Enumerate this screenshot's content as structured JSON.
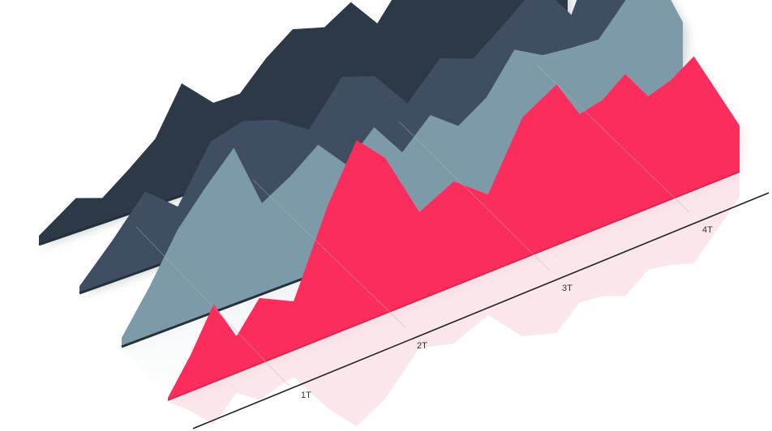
{
  "chart_data": {
    "type": "area",
    "title": "",
    "xlabel": "",
    "ylabel": "",
    "view": "3d-ribbons",
    "grid": false,
    "legend": "none",
    "categories": [
      "1T",
      "2T",
      "3T",
      "4T"
    ],
    "series": [
      {
        "name": "",
        "color": "#2e3947",
        "x": [
          0,
          0.07,
          0.12,
          0.17,
          0.22,
          0.27,
          0.33,
          0.38,
          0.43,
          0.48,
          0.54,
          0.59,
          0.64,
          0.69,
          0.74,
          0.79,
          0.85,
          0.9,
          0.95,
          1.0
        ],
        "values": [
          0.5,
          1.9,
          1.4,
          2.5,
          3.7,
          6.3,
          4.6,
          4.6,
          6.1,
          7.2,
          6.7,
          7.6,
          5.9,
          7.8,
          9.9,
          7.7,
          8.0,
          9.3,
          7.0,
          5.2
        ]
      },
      {
        "name": "",
        "color": "#3f4e62",
        "x": [
          0,
          0.06,
          0.12,
          0.18,
          0.24,
          0.3,
          0.36,
          0.42,
          0.48,
          0.54,
          0.6,
          0.66,
          0.72,
          0.78,
          0.84,
          0.9,
          0.95,
          1.0
        ],
        "values": [
          0.4,
          2.3,
          4.4,
          2.9,
          5.9,
          6.4,
          5.8,
          4.6,
          6.9,
          6.3,
          4.1,
          6.0,
          5.3,
          6.7,
          8.2,
          5.8,
          9.5,
          8.5
        ]
      },
      {
        "name": "",
        "color": "#7d9aa8",
        "x": [
          0,
          0.05,
          0.1,
          0.15,
          0.2,
          0.25,
          0.3,
          0.35,
          0.4,
          0.45,
          0.5,
          0.55,
          0.6,
          0.65,
          0.7,
          0.75,
          0.8,
          0.85,
          0.9,
          0.95,
          1.0
        ],
        "values": [
          0.5,
          2.8,
          5.4,
          7.2,
          8.8,
          5.1,
          6.0,
          7.2,
          5.5,
          7.0,
          5.0,
          6.5,
          5.3,
          6.3,
          8.4,
          7.5,
          7.3,
          7.2,
          8.9,
          9.9,
          6.4
        ]
      },
      {
        "name": "",
        "color": "#fb2d5c",
        "x": [
          0,
          0.04,
          0.08,
          0.12,
          0.16,
          0.22,
          0.28,
          0.33,
          0.38,
          0.44,
          0.5,
          0.56,
          0.62,
          0.68,
          0.72,
          0.76,
          0.8,
          0.84,
          0.88,
          0.92,
          1.0
        ],
        "values": [
          0.1,
          1.5,
          3.2,
          1.5,
          2.7,
          2.0,
          5.4,
          7.6,
          6.4,
          3.6,
          4.3,
          3.2,
          5.8,
          6.6,
          5.0,
          5.2,
          5.9,
          4.6,
          4.9,
          5.5,
          1.9
        ]
      }
    ]
  }
}
